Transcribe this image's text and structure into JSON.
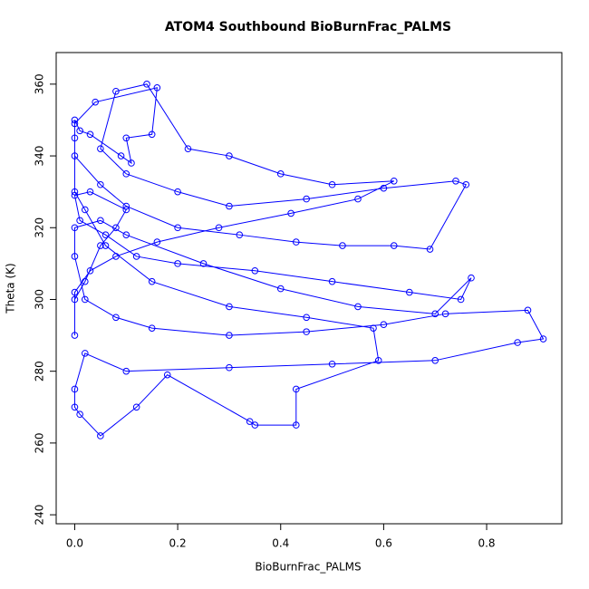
{
  "chart_data": {
    "type": "line",
    "markers": true,
    "title": "ATOM4 Southbound BioBurnFrac_PALMS",
    "x_label": "BioBurnFrac_PALMS",
    "y_label": "Theta (K)",
    "color": "#0000ff",
    "x": [
      0.0,
      0.02,
      0.05,
      0.08,
      0.1,
      0.03,
      0.0,
      0.01,
      0.06,
      0.12,
      0.2,
      0.35,
      0.5,
      0.65,
      0.75,
      0.77,
      0.7,
      0.55,
      0.4,
      0.25,
      0.1,
      0.05,
      0.0,
      0.0,
      0.02,
      0.08,
      0.15,
      0.3,
      0.45,
      0.6,
      0.72,
      0.88,
      0.91,
      0.86,
      0.7,
      0.5,
      0.3,
      0.1,
      0.02,
      0.0,
      0.0,
      0.01,
      0.05,
      0.12,
      0.18,
      0.34,
      0.35,
      0.43,
      0.43,
      0.59,
      0.58,
      0.45,
      0.3,
      0.15,
      0.06,
      0.02,
      0.0,
      0.0,
      0.0,
      0.01,
      0.03,
      0.09,
      0.11,
      0.1,
      0.15,
      0.16,
      0.04,
      0.0,
      0.0,
      0.05,
      0.1,
      0.2,
      0.32,
      0.43,
      0.52,
      0.62,
      0.69,
      0.76,
      0.74,
      0.6,
      0.45,
      0.3,
      0.2,
      0.1,
      0.05,
      0.08,
      0.14,
      0.22,
      0.3,
      0.4,
      0.5,
      0.62,
      0.55,
      0.42,
      0.28,
      0.16,
      0.08,
      0.03,
      0.0,
      0.0
    ],
    "values": [
      300,
      305,
      315,
      320,
      325,
      330,
      329,
      322,
      318,
      312,
      310,
      308,
      305,
      302,
      300,
      306,
      296,
      298,
      303,
      310,
      318,
      322,
      320,
      312,
      300,
      295,
      292,
      290,
      291,
      293,
      296,
      297,
      289,
      288,
      283,
      282,
      281,
      280,
      285,
      275,
      270,
      268,
      262,
      270,
      279,
      266,
      265,
      265,
      275,
      283,
      292,
      295,
      298,
      305,
      315,
      325,
      330,
      345,
      350,
      347,
      346,
      340,
      338,
      345,
      346,
      359,
      355,
      349,
      340,
      332,
      326,
      320,
      318,
      316,
      315,
      315,
      314,
      332,
      333,
      331,
      328,
      326,
      330,
      335,
      342,
      358,
      360,
      342,
      340,
      335,
      332,
      333,
      328,
      324,
      320,
      316,
      312,
      308,
      302,
      290
    ],
    "xlim": [
      -0.036,
      0.946
    ],
    "ylim": [
      237.5,
      368.8
    ],
    "xticks": [
      {
        "value": 0,
        "label": "0.0"
      },
      {
        "value": 0.2,
        "label": "0.2"
      },
      {
        "value": 0.4,
        "label": "0.4"
      },
      {
        "value": 0.6,
        "label": "0.6"
      },
      {
        "value": 0.8,
        "label": "0.8"
      }
    ],
    "yticks": [
      240,
      260,
      280,
      300,
      320,
      340,
      360
    ]
  }
}
